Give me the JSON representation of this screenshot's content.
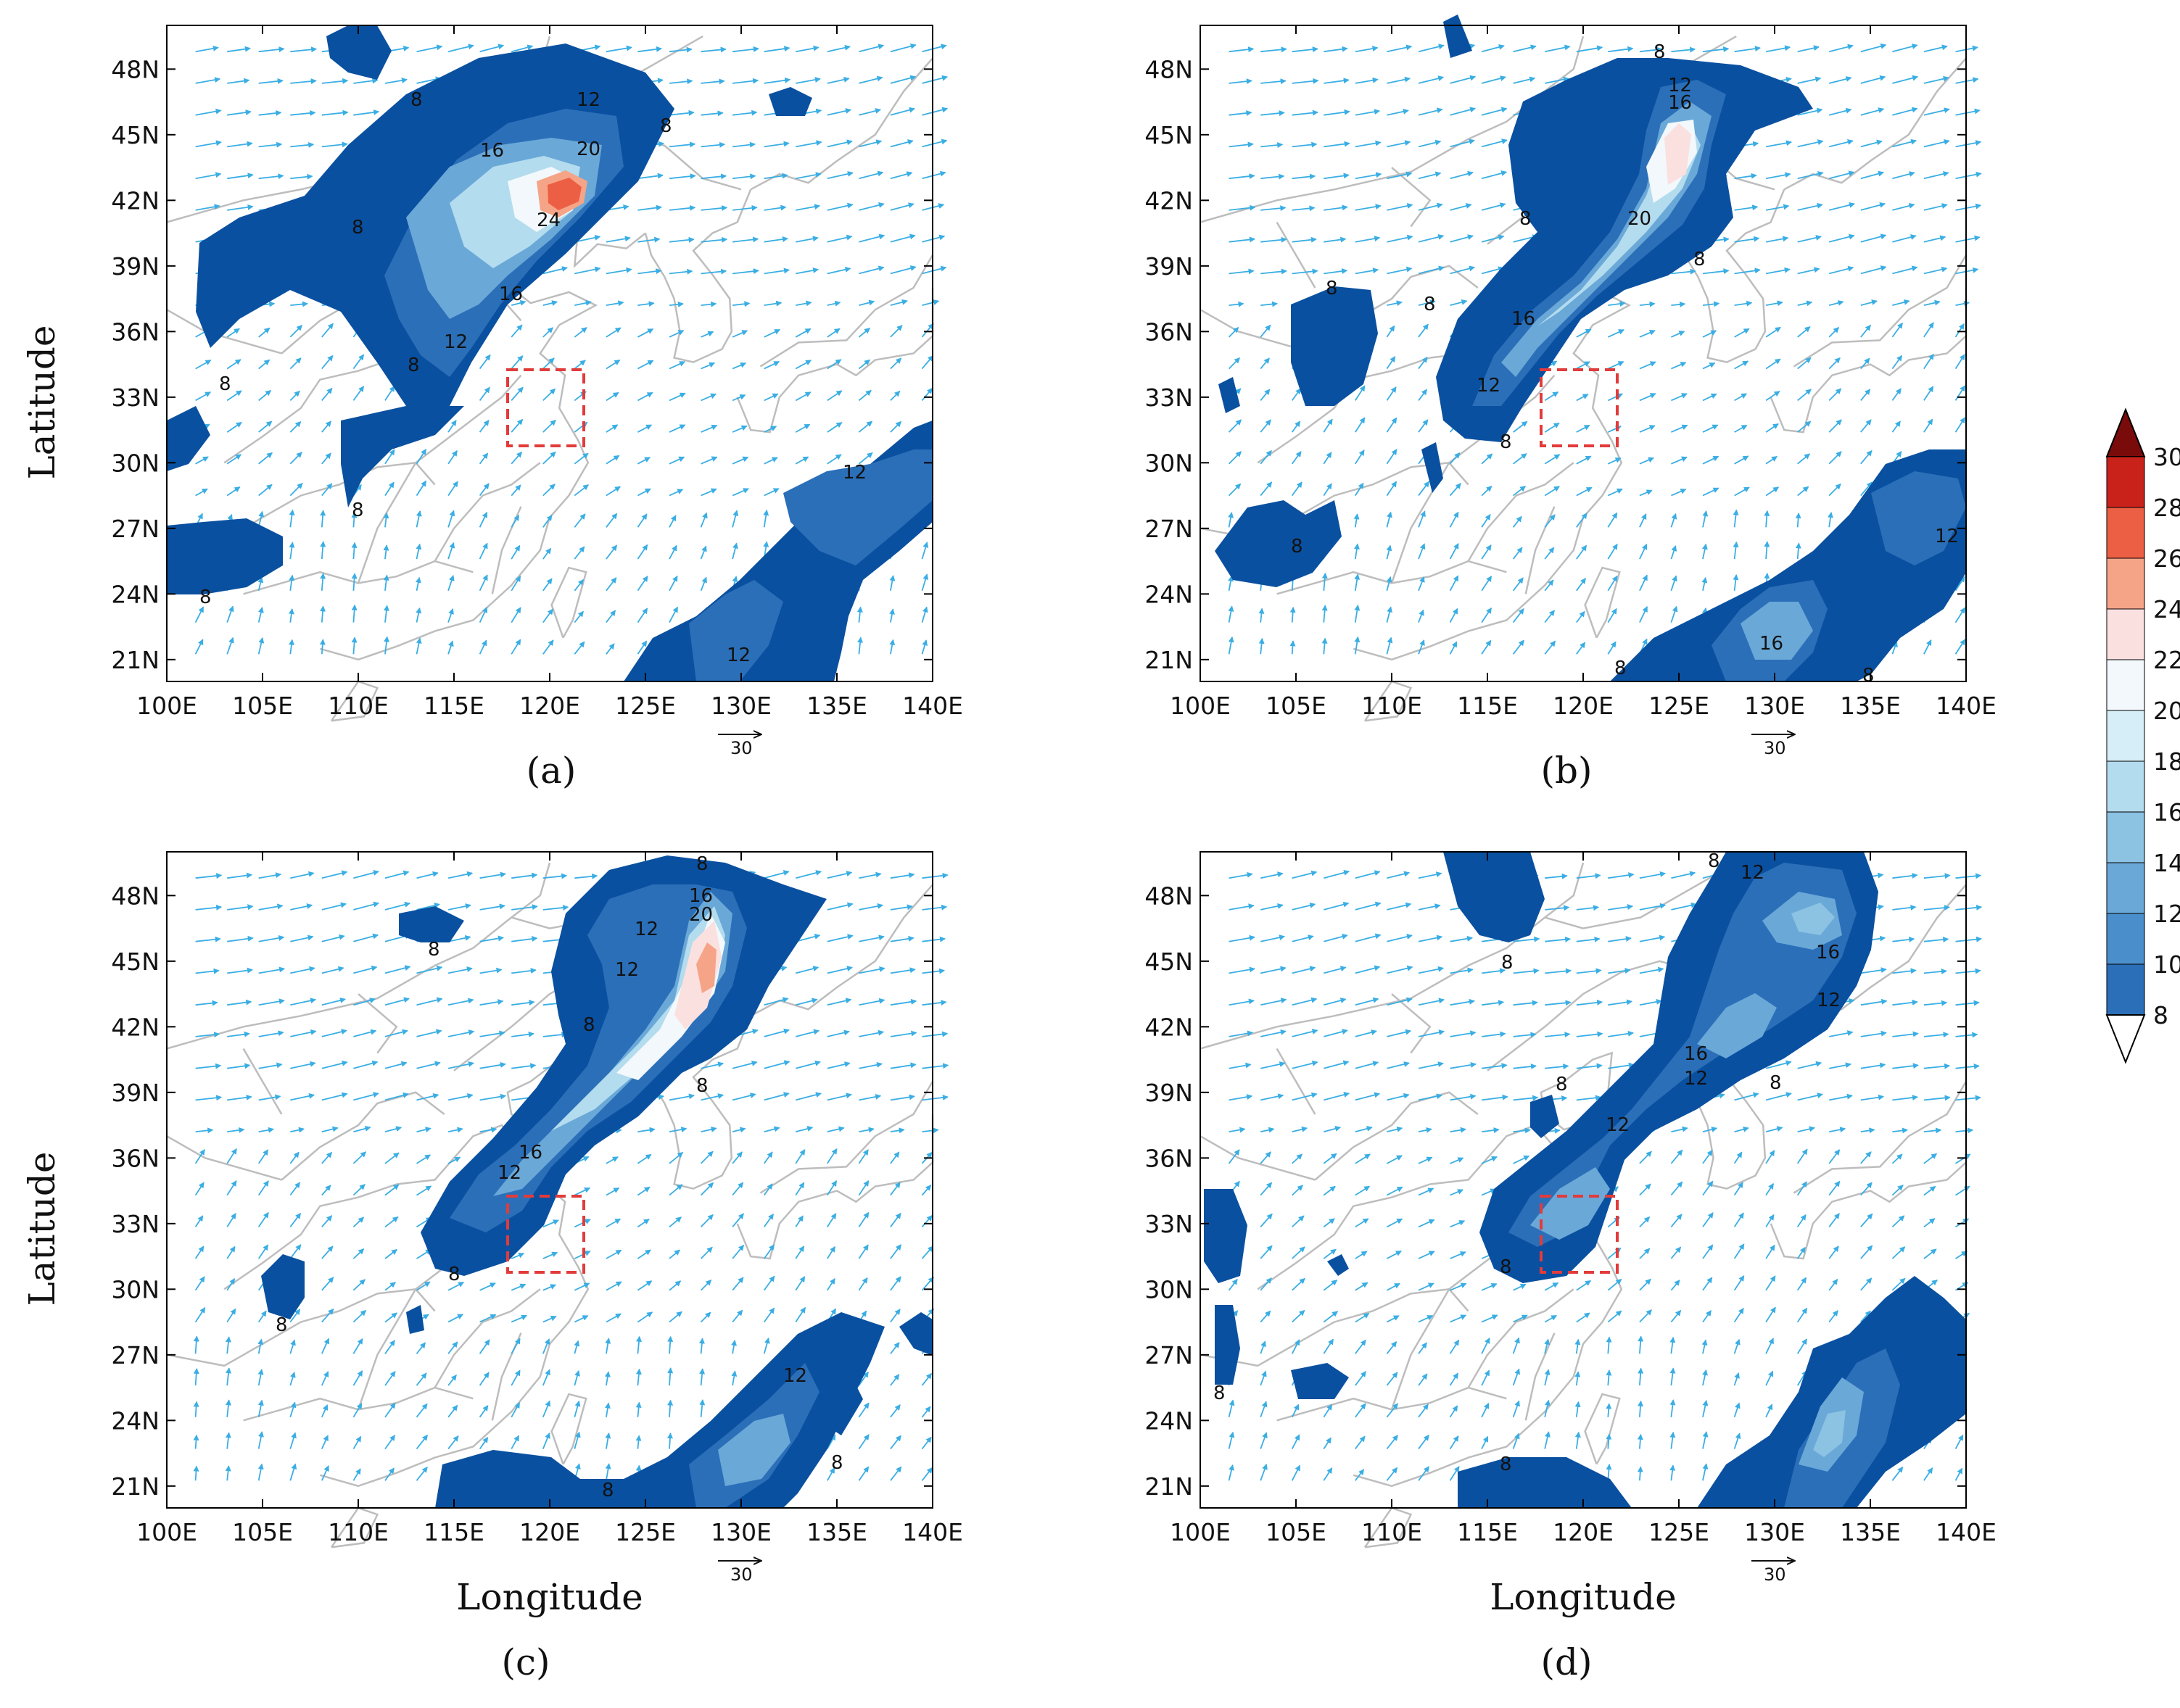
{
  "figure": {
    "x_axis_title": "Longitude",
    "y_axis_title": "Latitude",
    "lon_ticks": [
      "100E",
      "105E",
      "110E",
      "115E",
      "120E",
      "125E",
      "130E",
      "135E",
      "140E"
    ],
    "lat_ticks": [
      "48N",
      "45N",
      "42N",
      "39N",
      "36N",
      "33N",
      "30N",
      "27N",
      "24N",
      "21N"
    ],
    "vector_reference": "30",
    "colorbar": {
      "levels": [
        8,
        10,
        12,
        14,
        16,
        18,
        20,
        22,
        24,
        26,
        28,
        30
      ],
      "colors": [
        "#0a50a0",
        "#2b6fb8",
        "#4a8fcc",
        "#6aa8d8",
        "#8cc2e2",
        "#b3dcee",
        "#d6eef7",
        "#f2f8fb",
        "#fbe0e0",
        "#f6a487",
        "#ec5f44",
        "#c9221a",
        "#7a0b0b"
      ]
    },
    "box_color": "#e23b3b",
    "vector_color": "#3aaee4",
    "border_color": "#bdbdbd"
  },
  "chart_data": [
    {
      "type": "map",
      "panel_label": "(a)",
      "lon_range": [
        100,
        140
      ],
      "lat_range": [
        20,
        50
      ],
      "contour_labels": [
        8,
        12,
        16,
        20,
        24
      ],
      "max_value": 27
    },
    {
      "type": "map",
      "panel_label": "(b)",
      "lon_range": [
        100,
        140
      ],
      "lat_range": [
        20,
        50
      ],
      "contour_labels": [
        8,
        12,
        16,
        20
      ],
      "max_value": 23
    },
    {
      "type": "map",
      "panel_label": "(c)",
      "lon_range": [
        100,
        140
      ],
      "lat_range": [
        20,
        50
      ],
      "contour_labels": [
        8,
        12,
        16,
        20
      ],
      "max_value": 25
    },
    {
      "type": "map",
      "panel_label": "(d)",
      "lon_range": [
        100,
        140
      ],
      "lat_range": [
        20,
        50
      ],
      "contour_labels": [
        8,
        12,
        16
      ],
      "max_value": 18
    }
  ]
}
